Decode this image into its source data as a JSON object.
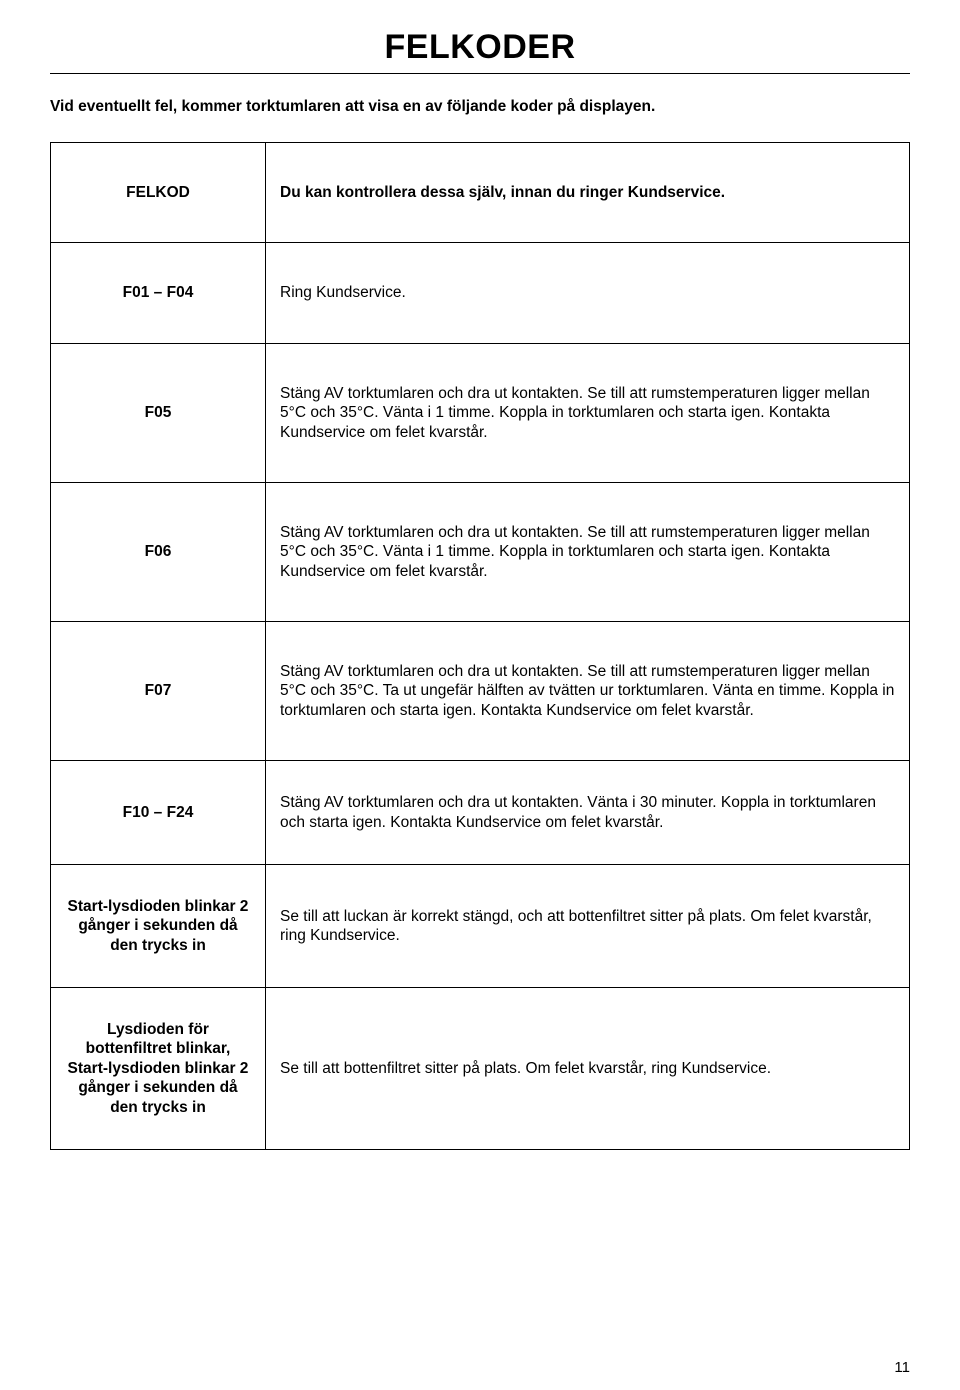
{
  "title": "FELKODER",
  "intro": "Vid eventuellt fel, kommer torktumlaren att visa en av följande koder på displayen.",
  "rows": [
    {
      "code": "FELKOD",
      "desc": "Du kan kontrollera dessa själv, innan du ringer Kundservice."
    },
    {
      "code": "F01 – F04",
      "desc": "Ring Kundservice."
    },
    {
      "code": "F05",
      "desc": "Stäng AV torktumlaren och dra ut kontakten. Se till att rumstemperaturen ligger mellan 5°C och 35°C. Vänta i 1 timme. Koppla in torktumlaren och starta igen. Kontakta Kundservice om felet kvarstår."
    },
    {
      "code": "F06",
      "desc": "Stäng AV torktumlaren och dra ut kontakten. Se till att rumstemperaturen ligger mellan 5°C och 35°C. Vänta i 1 timme. Koppla in torktumlaren och starta igen. Kontakta Kundservice om felet kvarstår."
    },
    {
      "code": "F07",
      "desc": "Stäng AV torktumlaren och dra ut kontakten. Se till att rumstemperaturen ligger mellan 5°C och 35°C. Ta ut ungefär hälften av tvätten ur torktumlaren. Vänta en timme. Koppla in torktumlaren och starta igen. Kontakta Kundservice om felet kvarstår."
    },
    {
      "code": "F10 – F24",
      "desc": "Stäng AV torktumlaren och dra ut kontakten. Vänta i 30 minuter. Koppla in torktumlaren och starta igen. Kontakta Kundservice om felet kvarstår."
    },
    {
      "code": "Start-lysdioden blinkar 2 gånger i sekunden då den trycks in",
      "desc": "Se till att luckan är korrekt stängd, och att bottenfiltret sitter på plats. Om felet kvarstår, ring Kundservice."
    },
    {
      "code": "Lysdioden för bottenfiltret blinkar, Start-lysdioden blinkar 2 gånger i sekunden då den trycks in",
      "desc": "Se till att bottenfiltret sitter på plats. Om felet kvarstår, ring Kundservice."
    }
  ],
  "pageNumber": "11"
}
